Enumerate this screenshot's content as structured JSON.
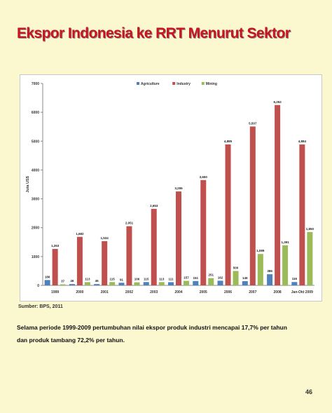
{
  "slide": {
    "title": "Ekspor Indonesia ke RRT Menurut Sektor",
    "source": "Sumber: BPS, 2011",
    "caption_line1": "Selama periode 1999-2009 pertumbuhan nilai ekspor produk industri mencapai 17,7% per tahun",
    "caption_line2": "dan produk tambang 72,2% per tahun.",
    "page_number": "46"
  },
  "colors": {
    "background": "#fbf8cf",
    "title": "#c8141e",
    "agriculture": "#4f81bd",
    "industry": "#c0504d",
    "mining": "#9bbb59"
  },
  "chart_data": {
    "type": "bar",
    "ylabel": "Juta US$",
    "ylim": [
      0,
      7000
    ],
    "y_ticks": [
      "0",
      "1000",
      "2000",
      "3000",
      "4000",
      "5000",
      "6000",
      "7000"
    ],
    "grid": false,
    "legend_position": "top",
    "categories": [
      "1999",
      "2000",
      "2001",
      "2002",
      "2003",
      "2004",
      "2005",
      "2006",
      "2007",
      "2008",
      "Jan-Okt 2009"
    ],
    "series": [
      {
        "name": "Agriculture",
        "color": "#4f81bd",
        "values": [
          186,
          46,
          46,
          91,
          115,
          111,
          151,
          162,
          146,
          386,
          116
        ],
        "labels": [
          "186",
          "46",
          "46",
          "91",
          "115",
          "111",
          "151",
          "162",
          "146",
          "386",
          "116"
        ]
      },
      {
        "name": "Industry",
        "color": "#c0504d",
        "values": [
          1263,
          1682,
          1534,
          2051,
          2653,
          3255,
          3650,
          4885,
          5507,
          6252,
          4884
        ],
        "labels": [
          "1,263",
          "1,682",
          "1,534",
          "2,051",
          "2,653",
          "3,255",
          "3,650",
          "4,885",
          "5,507",
          "6,252",
          "4,884"
        ]
      },
      {
        "name": "Mining",
        "color": "#9bbb59",
        "values": [
          37,
          113,
          115,
          106,
          113,
          157,
          251,
          500,
          1089,
          1391,
          1850
        ],
        "labels": [
          "37",
          "113",
          "115",
          "106",
          "113",
          "157",
          "251",
          "500",
          "1,089",
          "1,391",
          "1,850"
        ]
      }
    ]
  }
}
